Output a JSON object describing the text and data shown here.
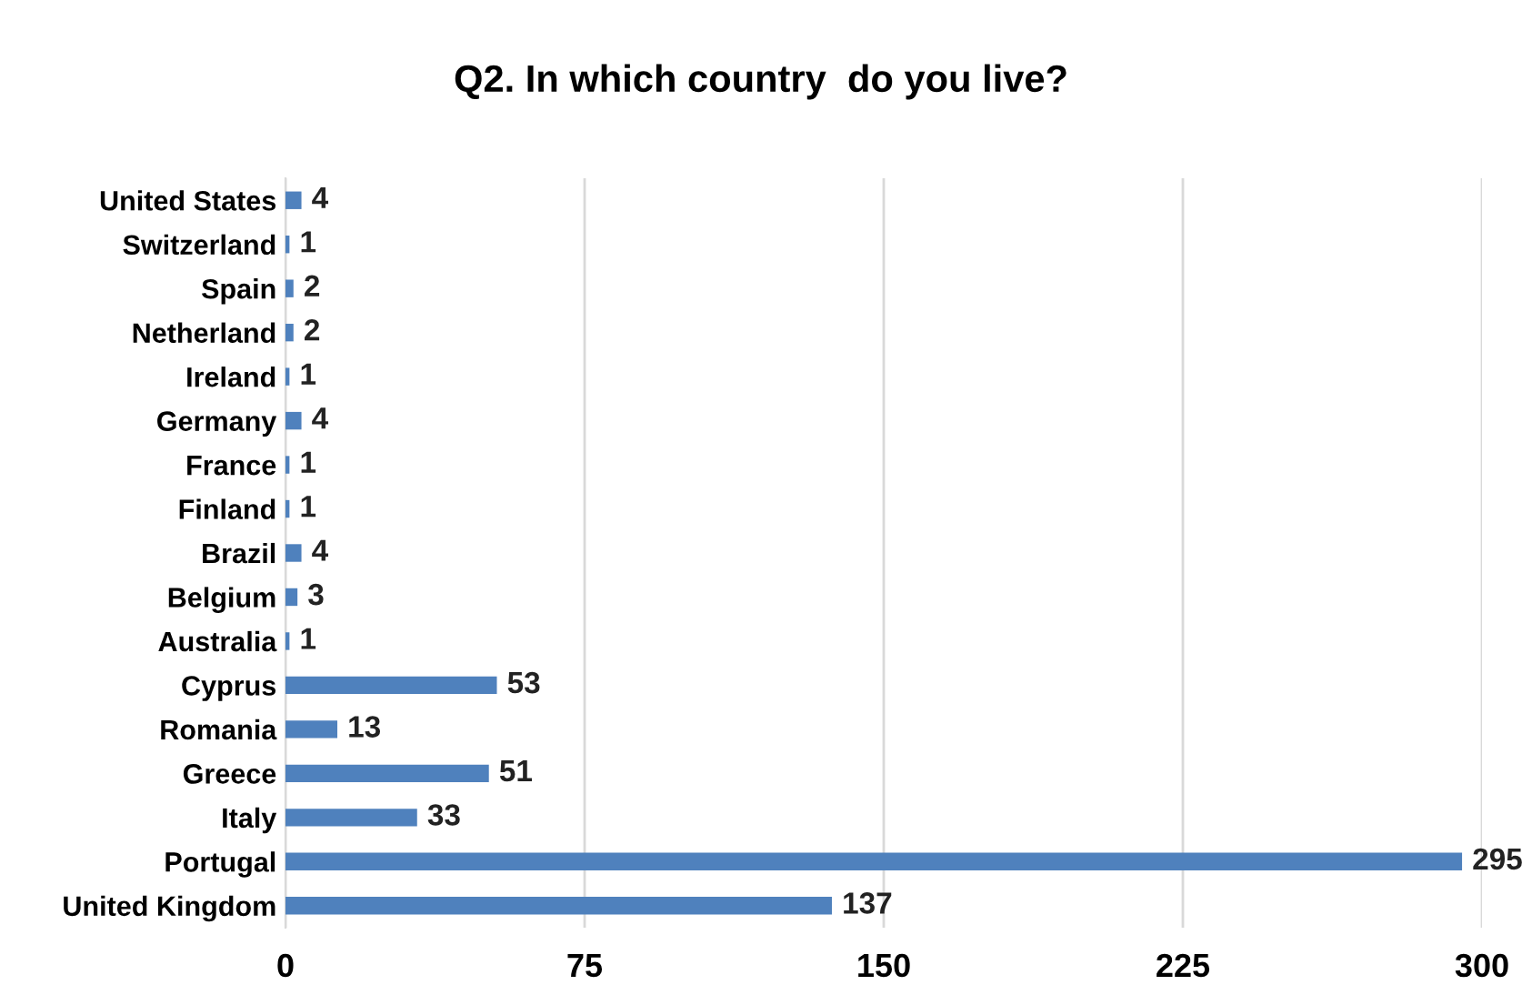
{
  "chart_data": {
    "type": "bar",
    "orientation": "horizontal",
    "title": "Q2. In which country  do you live?",
    "categories": [
      "United States",
      "Switzerland",
      "Spain",
      "Netherland",
      "Ireland",
      "Germany",
      "France",
      "Finland",
      "Brazil",
      "Belgium",
      "Australia",
      "Cyprus",
      "Romania",
      "Greece",
      "Italy",
      "Portugal",
      "United Kingdom"
    ],
    "values": [
      4,
      1,
      2,
      2,
      1,
      4,
      1,
      1,
      4,
      3,
      1,
      53,
      13,
      51,
      33,
      295,
      137
    ],
    "color": "#4f81bd",
    "xlim": [
      0,
      300
    ],
    "xticks": [
      0,
      75,
      150,
      225,
      300
    ],
    "grid": "x",
    "data_labels": true,
    "legend": false
  }
}
